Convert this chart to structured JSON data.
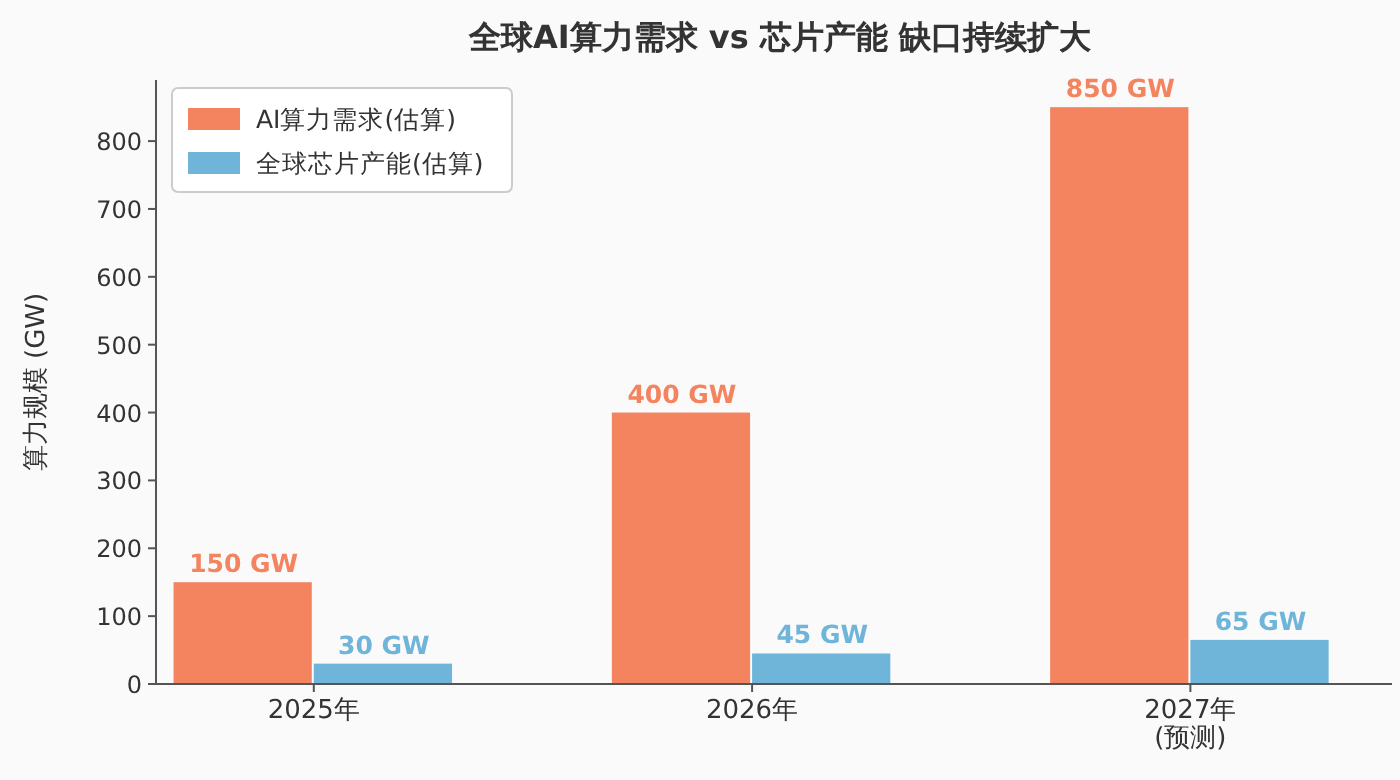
{
  "chart_data": {
    "type": "bar",
    "title": "全球AI算力需求 vs 芯片产能 缺口持续扩大",
    "ylabel": "算力规模 (GW)",
    "categories": [
      "2025年",
      "2026年",
      "2027年\n(预测)"
    ],
    "series": [
      {
        "name": "AI算力需求(估算)",
        "color": "#f4845f",
        "values": [
          150,
          400,
          850
        ],
        "value_labels": [
          "150 GW",
          "400 GW",
          "850 GW"
        ]
      },
      {
        "name": "全球芯片产能(估算)",
        "color": "#6fb5d9",
        "values": [
          30,
          45,
          65
        ],
        "value_labels": [
          "30 GW",
          "45 GW",
          "65 GW"
        ]
      }
    ],
    "ylim": [
      0,
      890
    ],
    "yticks": [
      0,
      100,
      200,
      300,
      400,
      500,
      600,
      700,
      800
    ],
    "grid": false,
    "legend": "top left"
  }
}
